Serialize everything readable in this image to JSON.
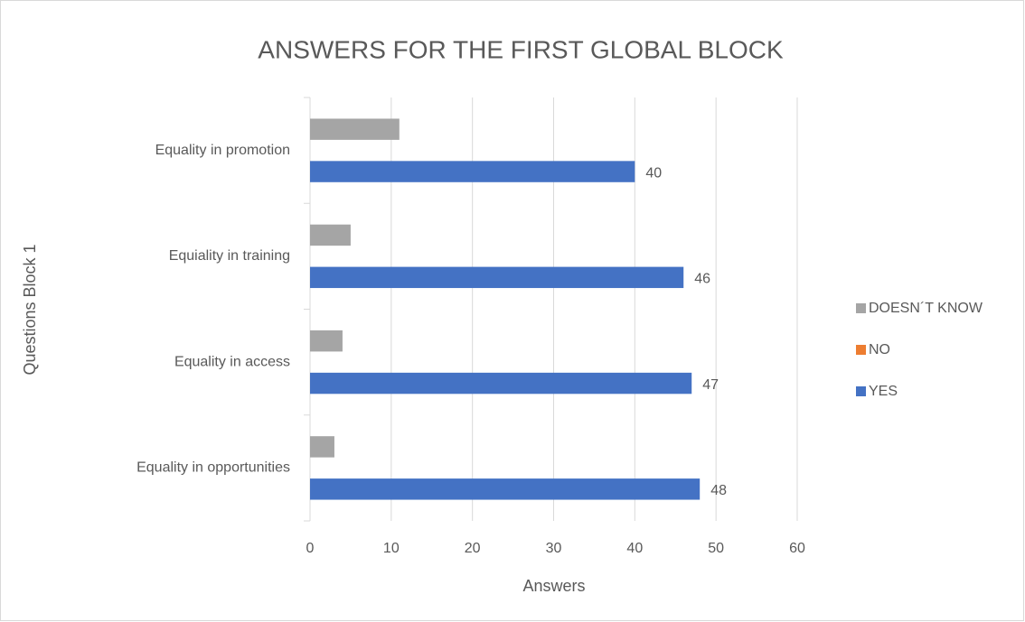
{
  "chart_data": {
    "type": "bar",
    "orientation": "horizontal",
    "title": "ANSWERS FOR THE FIRST GLOBAL BLOCK",
    "x_label": "Answers",
    "y_label": "Questions Block 1",
    "categories": [
      "Equality in opportunities",
      "Equality in access",
      "Equiality in training",
      "Equality in promotion"
    ],
    "series": [
      {
        "name": "DOESN´T KNOW",
        "color": "#a5a5a5",
        "values": [
          3,
          4,
          5,
          11
        ],
        "data_labels": false
      },
      {
        "name": "NO",
        "color": "#ed7d31",
        "values": [
          0,
          0,
          0,
          0
        ],
        "data_labels": false
      },
      {
        "name": "YES",
        "color": "#4472c4",
        "values": [
          48,
          47,
          46,
          40
        ],
        "data_labels": true
      }
    ],
    "xlim": [
      0,
      60
    ],
    "xticks": [
      0,
      10,
      20,
      30,
      40,
      50,
      60
    ],
    "grid": true,
    "legend": "right"
  }
}
